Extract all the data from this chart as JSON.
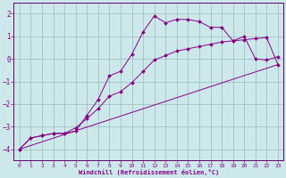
{
  "title": "",
  "xlabel": "Windchill (Refroidissement éolien,°C)",
  "bg_color": "#cce8ea",
  "line_color": "#880088",
  "grid_color": "#99bbbb",
  "spine_color": "#660066",
  "xlim": [
    -0.5,
    23.5
  ],
  "ylim": [
    -4.5,
    2.5
  ],
  "xticks": [
    0,
    1,
    2,
    3,
    4,
    5,
    6,
    7,
    8,
    9,
    10,
    11,
    12,
    13,
    14,
    15,
    16,
    17,
    18,
    19,
    20,
    21,
    22,
    23
  ],
  "yticks": [
    -4,
    -3,
    -2,
    -1,
    0,
    1,
    2
  ],
  "line1_x": [
    0,
    1,
    2,
    3,
    4,
    5,
    6,
    7,
    8,
    9,
    10,
    11,
    12,
    13,
    14,
    15,
    16,
    17,
    18,
    19,
    20,
    21,
    22,
    23
  ],
  "line1_y": [
    -4.0,
    -3.5,
    -3.4,
    -3.3,
    -3.3,
    -3.2,
    -2.5,
    -1.8,
    -0.75,
    -0.55,
    0.2,
    1.2,
    1.9,
    1.6,
    1.75,
    1.75,
    1.65,
    1.4,
    1.4,
    0.8,
    1.0,
    0.0,
    -0.05,
    0.1
  ],
  "line2_x": [
    0,
    1,
    2,
    3,
    4,
    5,
    6,
    7,
    8,
    9,
    10,
    11,
    12,
    13,
    14,
    15,
    16,
    17,
    18,
    19,
    20,
    21,
    22,
    23
  ],
  "line2_y": [
    -4.0,
    -3.5,
    -3.4,
    -3.3,
    -3.3,
    -3.05,
    -2.65,
    -2.2,
    -1.65,
    -1.45,
    -1.05,
    -0.55,
    -0.05,
    0.15,
    0.35,
    0.45,
    0.55,
    0.65,
    0.75,
    0.8,
    0.85,
    0.9,
    0.95,
    -0.25
  ],
  "line3_x": [
    0,
    23
  ],
  "line3_y": [
    -4.0,
    -0.25
  ]
}
